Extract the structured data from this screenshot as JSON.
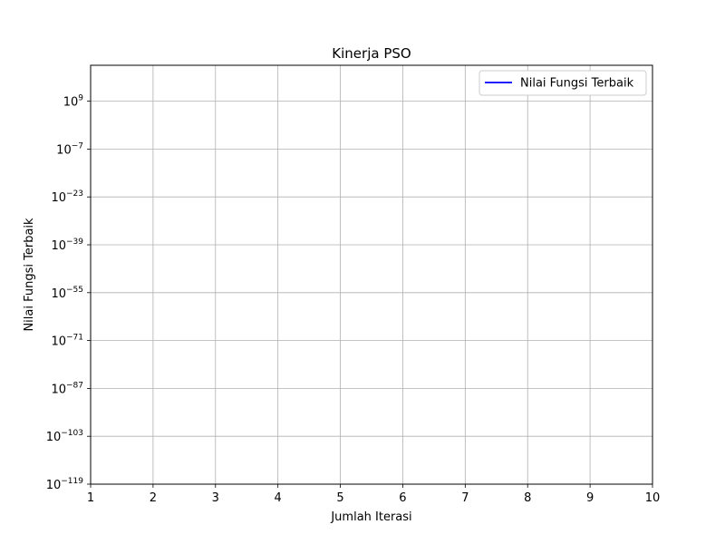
{
  "chart_data": {
    "type": "line",
    "title": "Kinerja PSO",
    "xlabel": "Jumlah Iterasi",
    "ylabel": "Nilai Fungsi Terbaik",
    "xlim": [
      1,
      10
    ],
    "x_ticks": [
      1,
      2,
      3,
      4,
      5,
      6,
      7,
      8,
      9,
      10
    ],
    "y_scale": "log",
    "y_tick_exponents": [
      -119,
      -103,
      -87,
      -71,
      -55,
      -39,
      -23,
      -7,
      9
    ],
    "ylim_exponent": [
      -119,
      21
    ],
    "grid": true,
    "legend_position": "top-right",
    "series": [
      {
        "name": "Nilai Fungsi Terbaik",
        "color": "#0000ff",
        "x": [],
        "y": []
      }
    ]
  }
}
